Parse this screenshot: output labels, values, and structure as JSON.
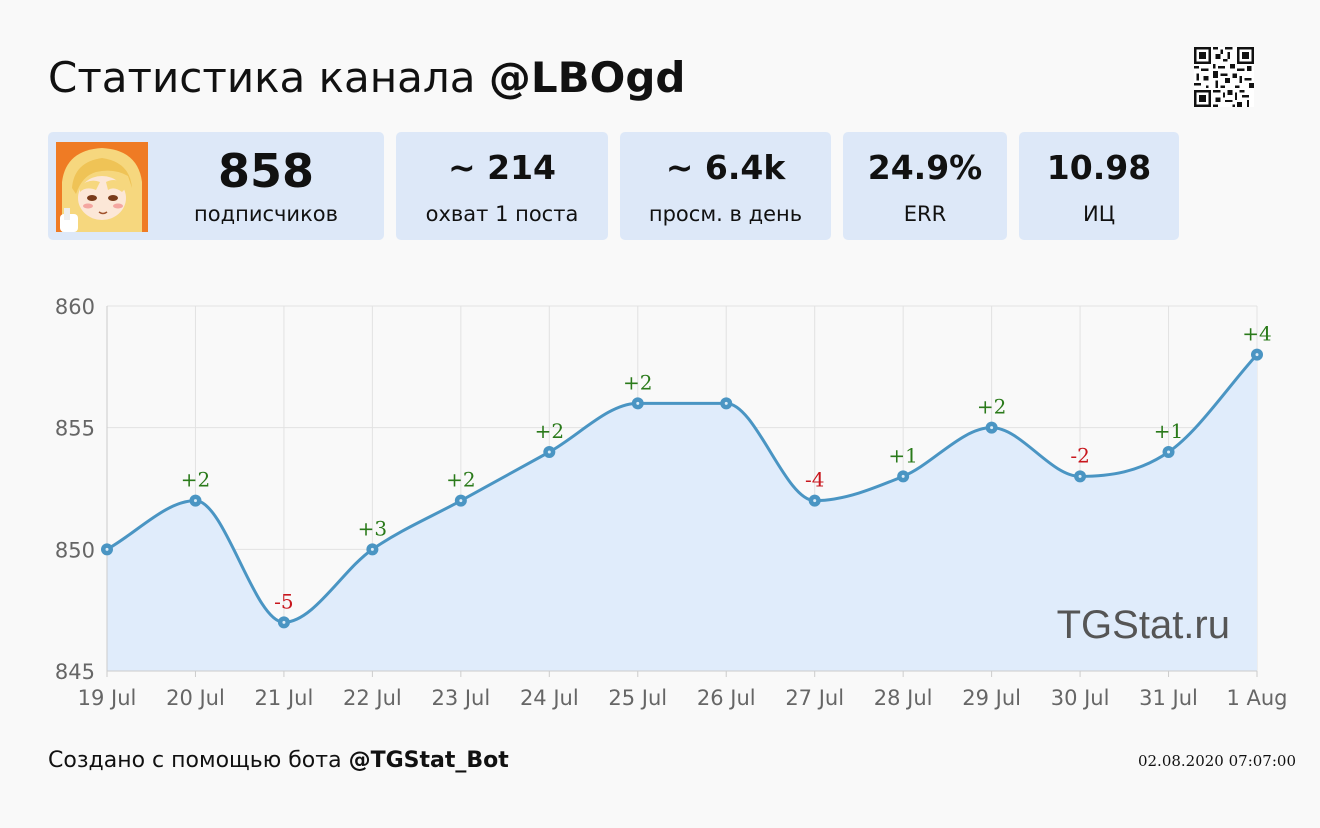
{
  "header": {
    "title_prefix": "Статистика канала",
    "channel": "@LBOgd"
  },
  "stats": [
    {
      "value": "858",
      "label": "подписчиков"
    },
    {
      "value": "~ 214",
      "label": "охват 1 поста"
    },
    {
      "value": "~ 6.4k",
      "label": "просм. в день"
    },
    {
      "value": "24.9%",
      "label": "ERR"
    },
    {
      "value": "10.98",
      "label": "ИЦ"
    }
  ],
  "watermark": "TGStat.ru",
  "footer": {
    "prefix": "Создано с помощью бота",
    "bot": "@TGStat_Bot",
    "timestamp": "02.08.2020 07:07:00"
  },
  "colors": {
    "card": "#dde8f8",
    "line": "#4a95c3",
    "area": "#e0ecfb",
    "positive": "#2a7a1a",
    "negative": "#c8161d"
  },
  "chart_data": {
    "type": "area",
    "x": [
      "19 Jul",
      "20 Jul",
      "21 Jul",
      "22 Jul",
      "23 Jul",
      "24 Jul",
      "25 Jul",
      "26 Jul",
      "27 Jul",
      "28 Jul",
      "29 Jul",
      "30 Jul",
      "31 Jul",
      "1 Aug"
    ],
    "series": [
      {
        "values": [
          850,
          852,
          847,
          850,
          852,
          854,
          856,
          856,
          852,
          853,
          855,
          853,
          854,
          858
        ]
      }
    ],
    "annotations": [
      "",
      "+2",
      "-5",
      "+3",
      "+2",
      "+2",
      "+2",
      "",
      "-4",
      "+1",
      "+2",
      "-2",
      "+1",
      "+4"
    ],
    "ylim": [
      845,
      860
    ],
    "yticks": [
      845,
      850,
      855,
      860
    ],
    "grid": true
  }
}
